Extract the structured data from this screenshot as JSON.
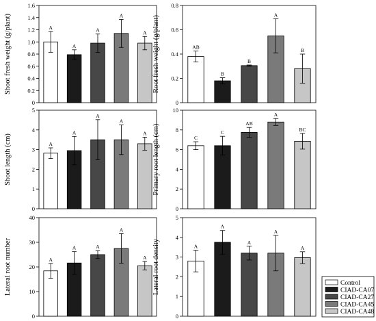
{
  "groups": [
    "Control",
    "CIAD-CA07",
    "CIAD-CA27",
    "CIAD-CA45",
    "CIAD-CA48"
  ],
  "colors": [
    "#ffffff",
    "#1b1b1b",
    "#474747",
    "#7a7a7a",
    "#c6c6c6"
  ],
  "chart_data": [
    {
      "type": "bar",
      "ylabel": "Shoot fresh weight (g/plant)",
      "ylim": [
        0,
        1.6
      ],
      "yticks": [
        "0",
        "0.2",
        "0.4",
        "0.6",
        "0.8",
        "1.0",
        "1.2",
        "1.4",
        "1.6"
      ],
      "tick_values": [
        0,
        0.2,
        0.4,
        0.6,
        0.8,
        1.0,
        1.2,
        1.4,
        1.6
      ],
      "series": [
        {
          "values": [
            1.0,
            0.79,
            0.98,
            1.14,
            0.98
          ],
          "errors": [
            0.17,
            0.08,
            0.15,
            0.23,
            0.11
          ]
        }
      ],
      "labels": [
        "A",
        "A",
        "A",
        "A",
        "A"
      ]
    },
    {
      "type": "bar",
      "ylabel": "Root fresh weight (g/plant)",
      "ylim": [
        0,
        0.8
      ],
      "yticks": [
        "0",
        "0.2",
        "0.4",
        "0.6",
        "0.8"
      ],
      "tick_values": [
        0,
        0.2,
        0.4,
        0.6,
        0.8
      ],
      "series": [
        {
          "values": [
            0.38,
            0.18,
            0.305,
            0.55,
            0.28
          ],
          "errors": [
            0.045,
            0.025,
            0.005,
            0.14,
            0.12
          ]
        }
      ],
      "labels": [
        "AB",
        "B",
        "B",
        "A",
        "B"
      ]
    },
    {
      "type": "bar",
      "ylabel": "Shoot length (cm)",
      "ylim": [
        0,
        5
      ],
      "yticks": [
        "0",
        "1",
        "2",
        "3",
        "4",
        "5"
      ],
      "tick_values": [
        0,
        1,
        2,
        3,
        4,
        5
      ],
      "series": [
        {
          "values": [
            2.82,
            2.95,
            3.5,
            3.5,
            3.3
          ],
          "errors": [
            0.27,
            0.72,
            1.02,
            0.75,
            0.33
          ]
        }
      ],
      "labels": [
        "A",
        "A",
        "A",
        "A",
        "A"
      ]
    },
    {
      "type": "bar",
      "ylabel": "Primary root length (cm)",
      "ylim": [
        0,
        10
      ],
      "yticks": [
        "0",
        "2",
        "4",
        "6",
        "8",
        "10"
      ],
      "tick_values": [
        0,
        2,
        4,
        6,
        8,
        10
      ],
      "series": [
        {
          "values": [
            6.4,
            6.4,
            7.75,
            8.8,
            6.85
          ],
          "errors": [
            0.4,
            0.95,
            0.5,
            0.35,
            0.8
          ]
        }
      ],
      "labels": [
        "C",
        "C",
        "AB",
        "A",
        "BC"
      ]
    },
    {
      "type": "bar",
      "ylabel": "Lateral root number",
      "ylim": [
        0,
        40
      ],
      "yticks": [
        "0",
        "10",
        "20",
        "30",
        "40"
      ],
      "tick_values": [
        0,
        10,
        20,
        30,
        40
      ],
      "series": [
        {
          "values": [
            18.4,
            21.6,
            25.0,
            27.5,
            20.5
          ],
          "errors": [
            3.0,
            4.6,
            1.6,
            6.0,
            1.7
          ]
        }
      ],
      "labels": [
        "A",
        "A",
        "A",
        "A",
        "A"
      ]
    },
    {
      "type": "bar",
      "ylabel": "Lateral root density",
      "ylim": [
        0,
        5
      ],
      "yticks": [
        "0",
        "1",
        "2",
        "3",
        "4",
        "5"
      ],
      "tick_values": [
        0,
        1,
        2,
        3,
        4,
        5
      ],
      "series": [
        {
          "values": [
            2.8,
            3.75,
            3.2,
            3.2,
            2.97
          ],
          "errors": [
            0.55,
            0.6,
            0.35,
            0.9,
            0.3
          ]
        }
      ],
      "labels": [
        "A",
        "A",
        "A",
        "A",
        "A"
      ]
    }
  ]
}
